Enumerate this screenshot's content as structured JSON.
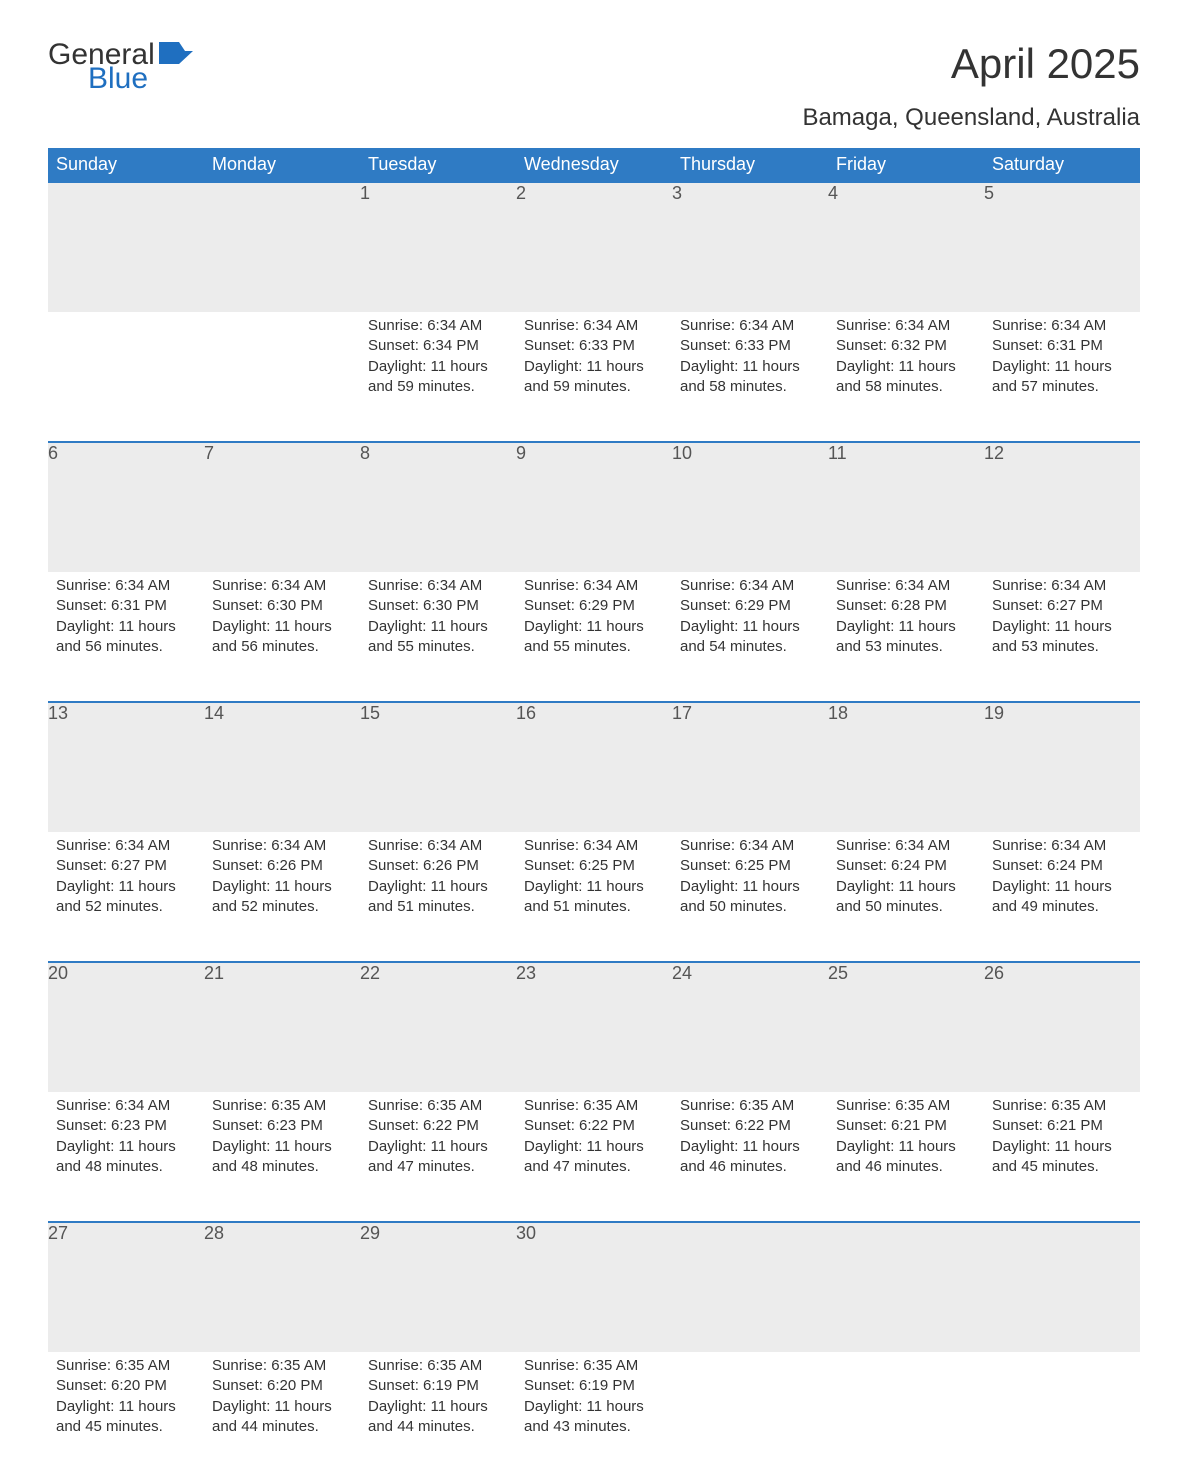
{
  "brand": {
    "general": "General",
    "blue": "Blue"
  },
  "title": "April 2025",
  "location": "Bamaga, Queensland, Australia",
  "colors": {
    "header_bg": "#2f7bc4",
    "header_text": "#ffffff",
    "daynum_bg": "#ececec",
    "week_border": "#2f7bc4",
    "text": "#333333",
    "logo_blue": "#1f6fc0",
    "background": "#ffffff"
  },
  "calendar": {
    "type": "table",
    "columns": [
      "Sunday",
      "Monday",
      "Tuesday",
      "Wednesday",
      "Thursday",
      "Friday",
      "Saturday"
    ],
    "col_width_pct": 14.28,
    "header_fontsize": 18,
    "cell_fontsize": 15,
    "daynum_fontsize": 18,
    "title_fontsize": 42,
    "location_fontsize": 24,
    "weeks": [
      [
        null,
        null,
        {
          "n": "1",
          "sr": "Sunrise: 6:34 AM",
          "ss": "Sunset: 6:34 PM",
          "dl": "Daylight: 11 hours and 59 minutes."
        },
        {
          "n": "2",
          "sr": "Sunrise: 6:34 AM",
          "ss": "Sunset: 6:33 PM",
          "dl": "Daylight: 11 hours and 59 minutes."
        },
        {
          "n": "3",
          "sr": "Sunrise: 6:34 AM",
          "ss": "Sunset: 6:33 PM",
          "dl": "Daylight: 11 hours and 58 minutes."
        },
        {
          "n": "4",
          "sr": "Sunrise: 6:34 AM",
          "ss": "Sunset: 6:32 PM",
          "dl": "Daylight: 11 hours and 58 minutes."
        },
        {
          "n": "5",
          "sr": "Sunrise: 6:34 AM",
          "ss": "Sunset: 6:31 PM",
          "dl": "Daylight: 11 hours and 57 minutes."
        }
      ],
      [
        {
          "n": "6",
          "sr": "Sunrise: 6:34 AM",
          "ss": "Sunset: 6:31 PM",
          "dl": "Daylight: 11 hours and 56 minutes."
        },
        {
          "n": "7",
          "sr": "Sunrise: 6:34 AM",
          "ss": "Sunset: 6:30 PM",
          "dl": "Daylight: 11 hours and 56 minutes."
        },
        {
          "n": "8",
          "sr": "Sunrise: 6:34 AM",
          "ss": "Sunset: 6:30 PM",
          "dl": "Daylight: 11 hours and 55 minutes."
        },
        {
          "n": "9",
          "sr": "Sunrise: 6:34 AM",
          "ss": "Sunset: 6:29 PM",
          "dl": "Daylight: 11 hours and 55 minutes."
        },
        {
          "n": "10",
          "sr": "Sunrise: 6:34 AM",
          "ss": "Sunset: 6:29 PM",
          "dl": "Daylight: 11 hours and 54 minutes."
        },
        {
          "n": "11",
          "sr": "Sunrise: 6:34 AM",
          "ss": "Sunset: 6:28 PM",
          "dl": "Daylight: 11 hours and 53 minutes."
        },
        {
          "n": "12",
          "sr": "Sunrise: 6:34 AM",
          "ss": "Sunset: 6:27 PM",
          "dl": "Daylight: 11 hours and 53 minutes."
        }
      ],
      [
        {
          "n": "13",
          "sr": "Sunrise: 6:34 AM",
          "ss": "Sunset: 6:27 PM",
          "dl": "Daylight: 11 hours and 52 minutes."
        },
        {
          "n": "14",
          "sr": "Sunrise: 6:34 AM",
          "ss": "Sunset: 6:26 PM",
          "dl": "Daylight: 11 hours and 52 minutes."
        },
        {
          "n": "15",
          "sr": "Sunrise: 6:34 AM",
          "ss": "Sunset: 6:26 PM",
          "dl": "Daylight: 11 hours and 51 minutes."
        },
        {
          "n": "16",
          "sr": "Sunrise: 6:34 AM",
          "ss": "Sunset: 6:25 PM",
          "dl": "Daylight: 11 hours and 51 minutes."
        },
        {
          "n": "17",
          "sr": "Sunrise: 6:34 AM",
          "ss": "Sunset: 6:25 PM",
          "dl": "Daylight: 11 hours and 50 minutes."
        },
        {
          "n": "18",
          "sr": "Sunrise: 6:34 AM",
          "ss": "Sunset: 6:24 PM",
          "dl": "Daylight: 11 hours and 50 minutes."
        },
        {
          "n": "19",
          "sr": "Sunrise: 6:34 AM",
          "ss": "Sunset: 6:24 PM",
          "dl": "Daylight: 11 hours and 49 minutes."
        }
      ],
      [
        {
          "n": "20",
          "sr": "Sunrise: 6:34 AM",
          "ss": "Sunset: 6:23 PM",
          "dl": "Daylight: 11 hours and 48 minutes."
        },
        {
          "n": "21",
          "sr": "Sunrise: 6:35 AM",
          "ss": "Sunset: 6:23 PM",
          "dl": "Daylight: 11 hours and 48 minutes."
        },
        {
          "n": "22",
          "sr": "Sunrise: 6:35 AM",
          "ss": "Sunset: 6:22 PM",
          "dl": "Daylight: 11 hours and 47 minutes."
        },
        {
          "n": "23",
          "sr": "Sunrise: 6:35 AM",
          "ss": "Sunset: 6:22 PM",
          "dl": "Daylight: 11 hours and 47 minutes."
        },
        {
          "n": "24",
          "sr": "Sunrise: 6:35 AM",
          "ss": "Sunset: 6:22 PM",
          "dl": "Daylight: 11 hours and 46 minutes."
        },
        {
          "n": "25",
          "sr": "Sunrise: 6:35 AM",
          "ss": "Sunset: 6:21 PM",
          "dl": "Daylight: 11 hours and 46 minutes."
        },
        {
          "n": "26",
          "sr": "Sunrise: 6:35 AM",
          "ss": "Sunset: 6:21 PM",
          "dl": "Daylight: 11 hours and 45 minutes."
        }
      ],
      [
        {
          "n": "27",
          "sr": "Sunrise: 6:35 AM",
          "ss": "Sunset: 6:20 PM",
          "dl": "Daylight: 11 hours and 45 minutes."
        },
        {
          "n": "28",
          "sr": "Sunrise: 6:35 AM",
          "ss": "Sunset: 6:20 PM",
          "dl": "Daylight: 11 hours and 44 minutes."
        },
        {
          "n": "29",
          "sr": "Sunrise: 6:35 AM",
          "ss": "Sunset: 6:19 PM",
          "dl": "Daylight: 11 hours and 44 minutes."
        },
        {
          "n": "30",
          "sr": "Sunrise: 6:35 AM",
          "ss": "Sunset: 6:19 PM",
          "dl": "Daylight: 11 hours and 43 minutes."
        },
        null,
        null,
        null
      ]
    ]
  }
}
